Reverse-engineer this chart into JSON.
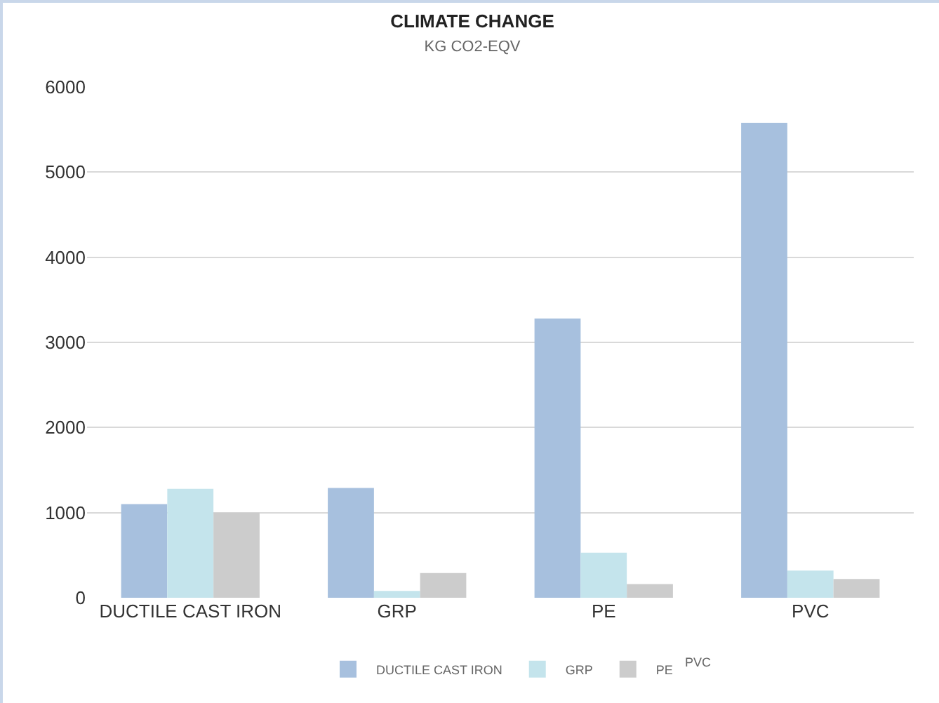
{
  "chart_data": {
    "type": "bar",
    "title": "CLIMATE CHANGE",
    "subtitle": "KG CO2-EQV",
    "categories": [
      "DUCTILE CAST IRON",
      "GRP",
      "PE",
      "PVC"
    ],
    "series": [
      {
        "name": "DUCTILE CAST IRON",
        "color": "#a7c0de",
        "values": [
          1100,
          1290,
          3280,
          5580
        ]
      },
      {
        "name": "GRP",
        "color": "#c4e4ec",
        "values": [
          1280,
          80,
          530,
          320
        ]
      },
      {
        "name": "PE",
        "color": "#cccccc",
        "values": [
          1000,
          290,
          160,
          220
        ]
      }
    ],
    "annotations": [
      "PVC"
    ],
    "ylim": [
      0,
      6000
    ],
    "yticks": [
      0,
      1000,
      2000,
      3000,
      4000,
      5000,
      6000
    ],
    "grid": "y",
    "legend": "bottom"
  }
}
